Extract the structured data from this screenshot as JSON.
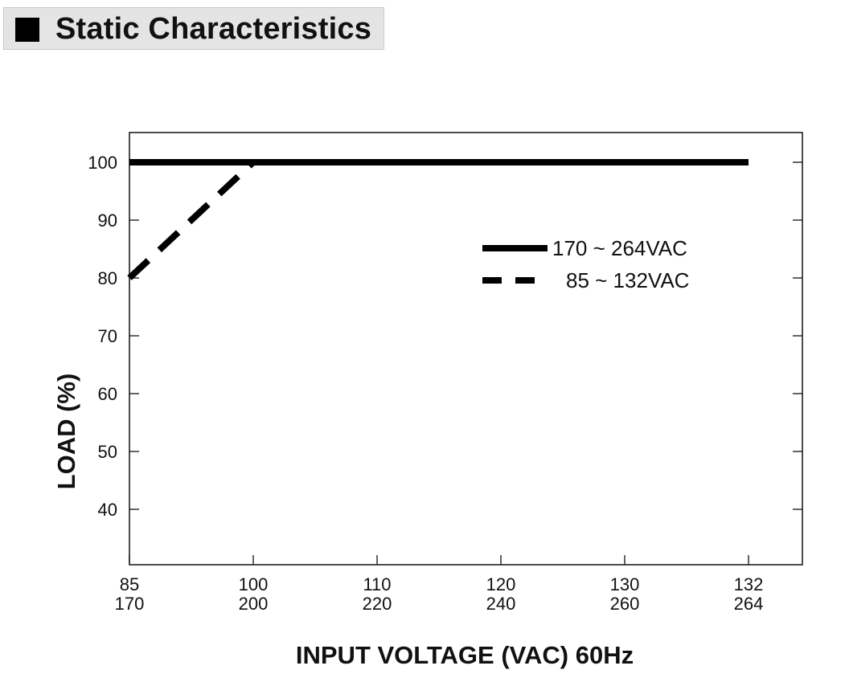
{
  "header": {
    "title": "Static Characteristics"
  },
  "chart_data": {
    "type": "line",
    "title": "",
    "xlabel": "INPUT VOLTAGE (VAC) 60Hz",
    "ylabel": "LOAD (%)",
    "x_ticks_top": [
      "85",
      "100",
      "110",
      "120",
      "130",
      "132"
    ],
    "x_ticks_bottom": [
      "170",
      "200",
      "220",
      "240",
      "260",
      "264"
    ],
    "y_ticks": [
      40,
      50,
      60,
      70,
      80,
      90,
      100
    ],
    "grid": false,
    "legend_position": "right",
    "series": [
      {
        "name": "170 ~ 264VAC",
        "style": "solid",
        "color": "#000000",
        "x": [
          85,
          132
        ],
        "y": [
          100,
          100
        ]
      },
      {
        "name": "85 ~ 132VAC",
        "style": "dashed",
        "color": "#000000",
        "x": [
          85,
          100
        ],
        "y": [
          80,
          100
        ]
      }
    ]
  }
}
